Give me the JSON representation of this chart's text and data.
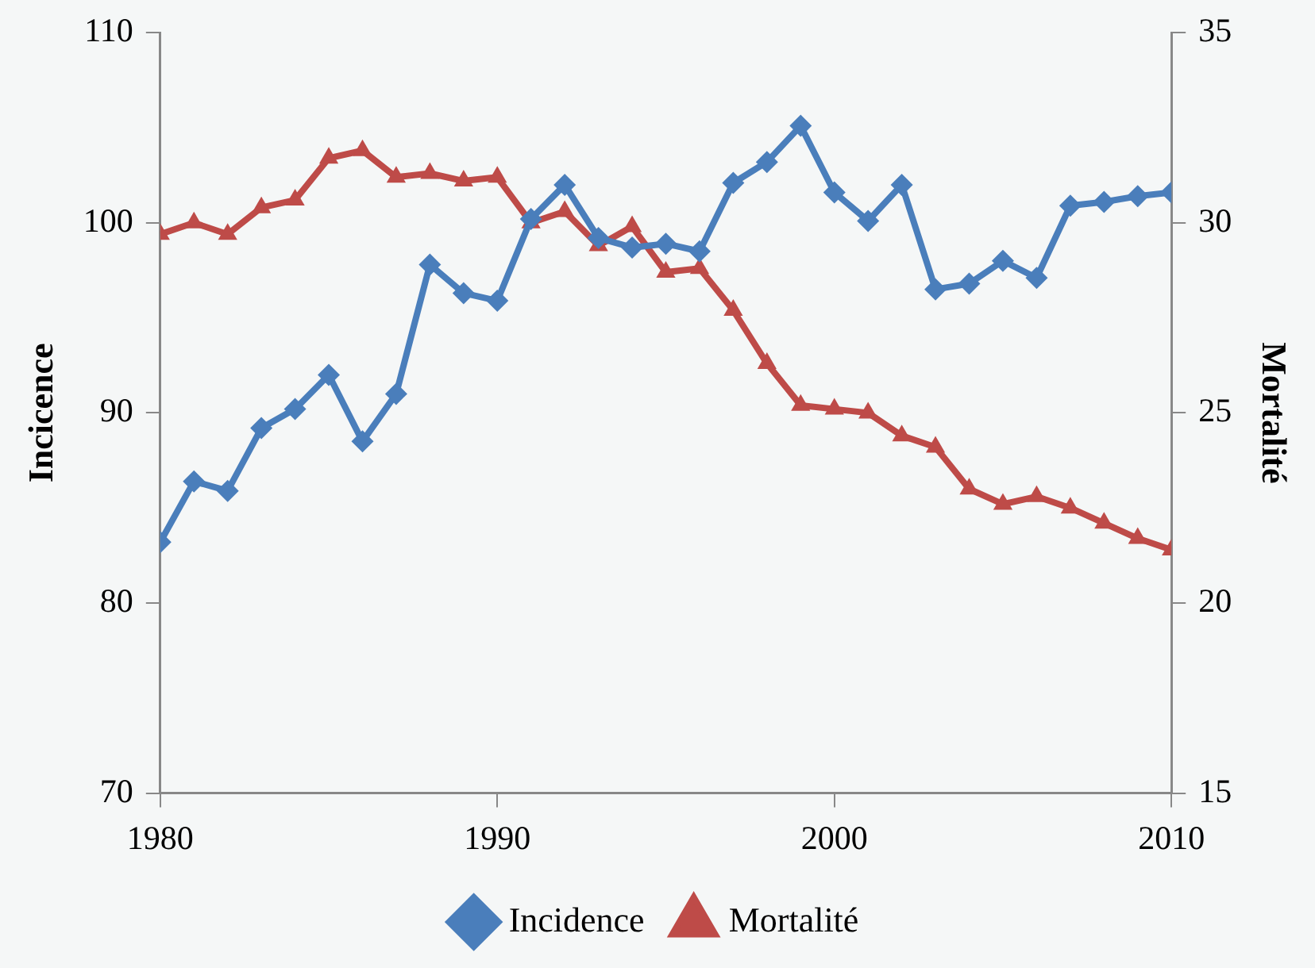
{
  "chart_data": {
    "type": "line",
    "ylabel": "Incicence",
    "y2label": "Mortalité",
    "x": [
      1980,
      1981,
      1982,
      1983,
      1984,
      1985,
      1986,
      1987,
      1988,
      1989,
      1990,
      1991,
      1992,
      1993,
      1994,
      1995,
      1996,
      1997,
      1998,
      1999,
      2000,
      2001,
      2002,
      2003,
      2004,
      2005,
      2006,
      2007,
      2008,
      2009,
      2010
    ],
    "series": [
      {
        "name": "Incidence",
        "color": "#4a7ebb",
        "marker": "diamond",
        "values": [
          83.2,
          86.4,
          85.9,
          89.2,
          90.2,
          92.0,
          88.5,
          91.0,
          97.8,
          96.3,
          95.9,
          100.2,
          102.0,
          99.2,
          98.7,
          98.9,
          98.5,
          102.1,
          103.2,
          105.1,
          101.6,
          100.1,
          102.0,
          96.5,
          96.8,
          98.0,
          97.1,
          100.9,
          101.1,
          101.4,
          101.6
        ]
      },
      {
        "name": "Mortalité",
        "color": "#be4b48",
        "marker": "triangle",
        "axis": "y2",
        "values": [
          29.7,
          30.0,
          29.7,
          30.4,
          30.6,
          31.7,
          31.9,
          31.2,
          31.3,
          31.1,
          31.2,
          30.0,
          30.3,
          29.4,
          29.9,
          28.7,
          28.8,
          27.7,
          26.3,
          25.2,
          25.1,
          25.0,
          24.4,
          24.1,
          23.0,
          22.6,
          22.8,
          22.5,
          22.1,
          21.7,
          21.4
        ]
      }
    ],
    "xlim": [
      1980,
      2010
    ],
    "xticks": [
      1980,
      1990,
      2000,
      2010
    ],
    "ylim": [
      70,
      110
    ],
    "yticks": [
      70,
      80,
      90,
      100,
      110
    ],
    "y2lim": [
      15,
      35
    ],
    "y2ticks": [
      15,
      20,
      25,
      30,
      35
    ],
    "grid": false,
    "legend": "bottom"
  }
}
